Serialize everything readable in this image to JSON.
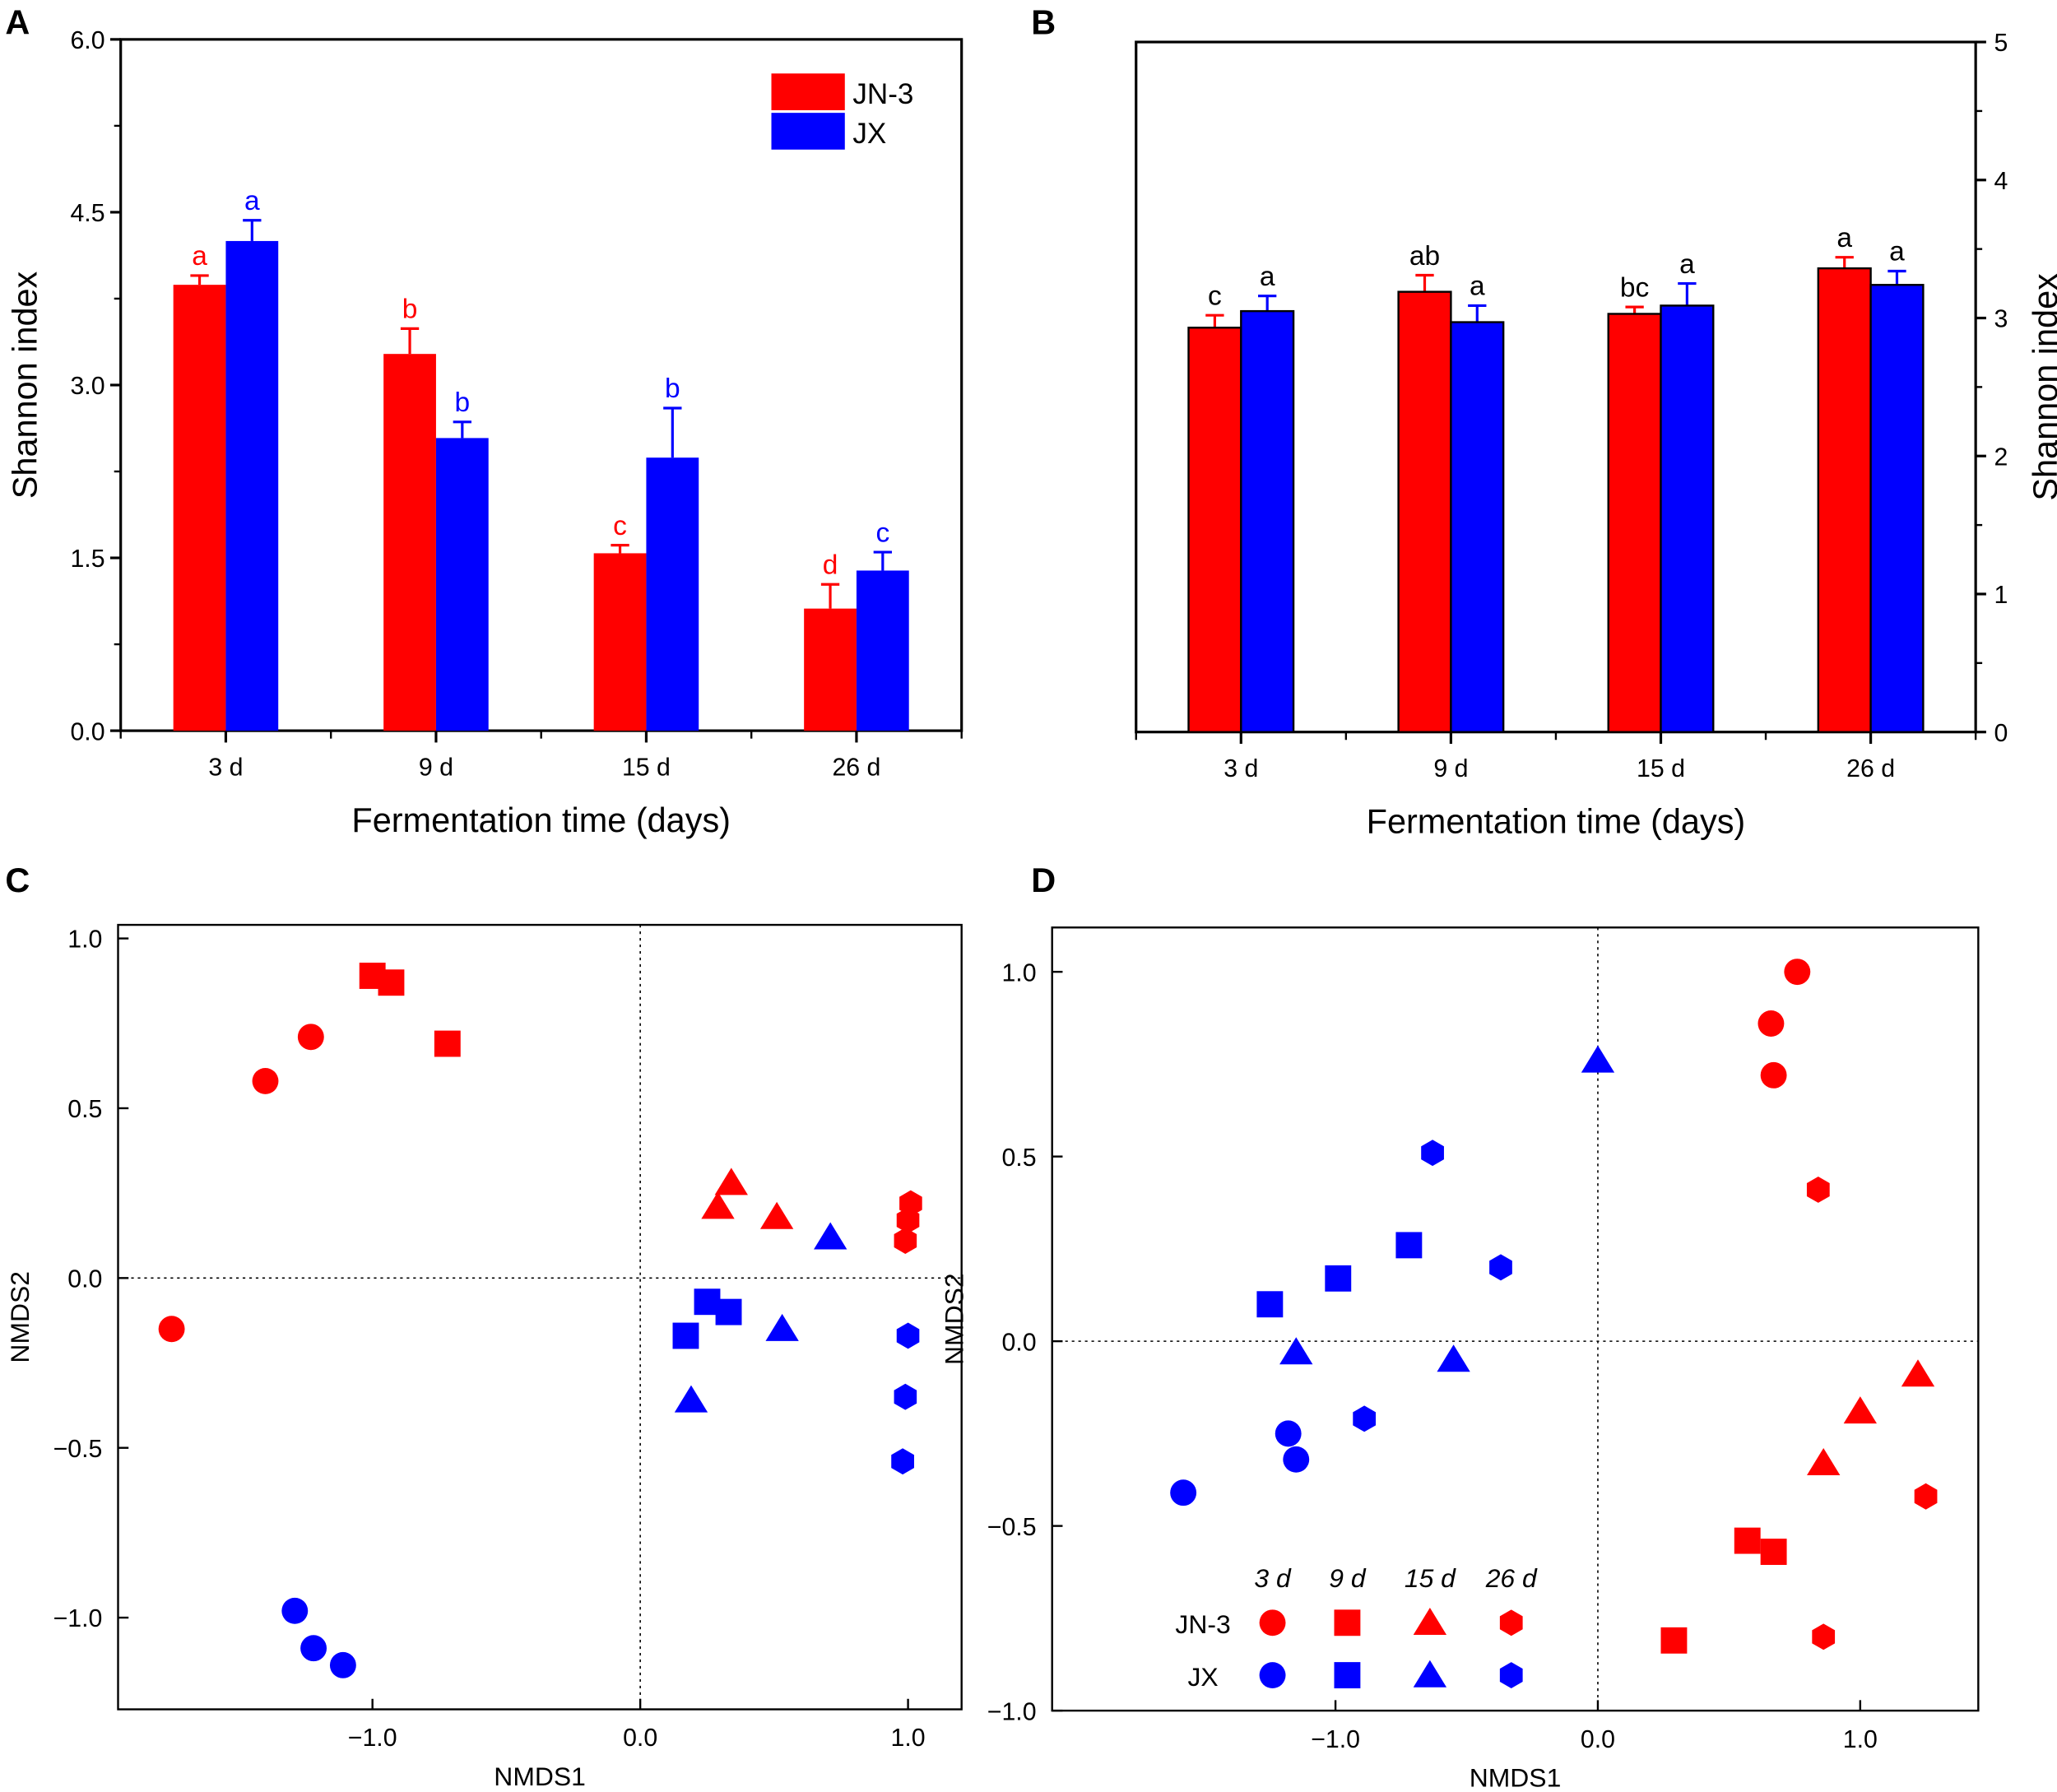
{
  "colors": {
    "jn3": "#ff0000",
    "jx": "#0000ff",
    "axis": "#000000"
  },
  "legend_series": [
    "JN-3",
    "JX"
  ],
  "chart_data": [
    {
      "panel": "A",
      "type": "bar",
      "categories": [
        "3 d",
        "9 d",
        "15 d",
        "26 d"
      ],
      "xlabel": "Fermentation time (days)",
      "ylabel": "Shannon index",
      "ylim": [
        0,
        6
      ],
      "yticks": [
        "0.0",
        "1.5",
        "3.0",
        "4.5",
        "6.0"
      ],
      "y_axis_side": "left",
      "legend_placement": "top-right",
      "letters_colored": true,
      "bar_outline": false,
      "series": [
        {
          "name": "JN-3",
          "values": [
            3.87,
            3.27,
            1.54,
            1.06
          ],
          "errors": [
            0.08,
            0.22,
            0.07,
            0.21
          ],
          "letters": [
            "a",
            "b",
            "c",
            "d"
          ]
        },
        {
          "name": "JX",
          "values": [
            4.25,
            2.54,
            2.37,
            1.39
          ],
          "errors": [
            0.18,
            0.14,
            0.43,
            0.16
          ],
          "letters": [
            "a",
            "b",
            "b",
            "c"
          ]
        }
      ]
    },
    {
      "panel": "B",
      "type": "bar",
      "categories": [
        "3 d",
        "9 d",
        "15 d",
        "26 d"
      ],
      "xlabel": "Fermentation time (days)",
      "ylabel": "Shannon index",
      "ylim": [
        0,
        5
      ],
      "yticks": [
        "0",
        "1",
        "2",
        "3",
        "4",
        "5"
      ],
      "y_axis_side": "right",
      "letters_colored": false,
      "bar_outline": true,
      "series": [
        {
          "name": "JN-3",
          "values": [
            2.93,
            3.19,
            3.03,
            3.36
          ],
          "errors": [
            0.09,
            0.12,
            0.05,
            0.08
          ],
          "letters": [
            "c",
            "ab",
            "bc",
            "a"
          ]
        },
        {
          "name": "JX",
          "values": [
            3.05,
            2.97,
            3.09,
            3.24
          ],
          "errors": [
            0.11,
            0.12,
            0.16,
            0.1
          ],
          "letters": [
            "a",
            "a",
            "a",
            "a"
          ]
        }
      ]
    },
    {
      "panel": "C",
      "type": "scatter",
      "xlabel": "NMDS1",
      "ylabel": "NMDS2",
      "xlim": [
        -1.95,
        1.2
      ],
      "ylim": [
        -1.27,
        1.04
      ],
      "xticks": [
        "−1.0",
        "0.0",
        "1.0"
      ],
      "xtick_values": [
        -1,
        0,
        1
      ],
      "yticks": [
        "−1.0",
        "−0.5",
        "0.0",
        "0.5",
        "1.0"
      ],
      "ytick_values": [
        -1,
        -0.5,
        0,
        0.5,
        1
      ],
      "zero_lines": "dotted",
      "points": [
        {
          "group": "JN-3",
          "day": "3 d",
          "shape": "circle",
          "pts": [
            [
              -1.23,
              0.71
            ],
            [
              -1.4,
              0.58
            ],
            [
              -1.75,
              -0.15
            ]
          ]
        },
        {
          "group": "JN-3",
          "day": "9 d",
          "shape": "square",
          "pts": [
            [
              -1.0,
              0.89
            ],
            [
              -0.93,
              0.87
            ],
            [
              -0.72,
              0.69
            ]
          ]
        },
        {
          "group": "JN-3",
          "day": "15 d",
          "shape": "triangle",
          "pts": [
            [
              0.34,
              0.28
            ],
            [
              0.29,
              0.21
            ],
            [
              0.51,
              0.18
            ]
          ]
        },
        {
          "group": "JN-3",
          "day": "26 d",
          "shape": "hexagon",
          "pts": [
            [
              1.01,
              0.22
            ],
            [
              1.0,
              0.17
            ],
            [
              0.99,
              0.11
            ]
          ]
        },
        {
          "group": "JX",
          "day": "3 d",
          "shape": "circle",
          "pts": [
            [
              -1.29,
              -0.98
            ],
            [
              -1.22,
              -1.09
            ],
            [
              -1.11,
              -1.14
            ]
          ]
        },
        {
          "group": "JX",
          "day": "9 d",
          "shape": "square",
          "pts": [
            [
              0.17,
              -0.17
            ],
            [
              0.25,
              -0.07
            ],
            [
              0.33,
              -0.1
            ]
          ]
        },
        {
          "group": "JX",
          "day": "15 d",
          "shape": "triangle",
          "pts": [
            [
              0.71,
              0.12
            ],
            [
              0.53,
              -0.15
            ],
            [
              0.19,
              -0.36
            ]
          ]
        },
        {
          "group": "JX",
          "day": "26 d",
          "shape": "hexagon",
          "pts": [
            [
              1.0,
              -0.17
            ],
            [
              0.99,
              -0.35
            ],
            [
              0.98,
              -0.54
            ]
          ]
        }
      ]
    },
    {
      "panel": "D",
      "type": "scatter",
      "xlabel": "NMDS1",
      "ylabel": "NMDS2",
      "xlim": [
        -2.08,
        1.45
      ],
      "ylim": [
        -1.0,
        1.12
      ],
      "xticks": [
        "−1.0",
        "0.0",
        "1.0"
      ],
      "xtick_values": [
        -1,
        0,
        1
      ],
      "yticks": [
        "−1.0",
        "−0.5",
        "0.0",
        "0.5",
        "1.0"
      ],
      "ytick_values": [
        -1,
        -0.5,
        0,
        0.5,
        1
      ],
      "zero_lines": "dotted",
      "legend_placement": "bottom-left",
      "legend_days": [
        "3 d",
        "9 d",
        "15 d",
        "26 d"
      ],
      "legend_groups": [
        "JN-3",
        "JX"
      ],
      "points": [
        {
          "group": "JN-3",
          "day": "3 d",
          "shape": "circle",
          "pts": [
            [
              0.76,
              1.0
            ],
            [
              0.66,
              0.86
            ],
            [
              0.67,
              0.72
            ]
          ]
        },
        {
          "group": "JN-3",
          "day": "9 d",
          "shape": "square",
          "pts": [
            [
              0.57,
              -0.54
            ],
            [
              0.67,
              -0.57
            ],
            [
              0.29,
              -0.81
            ]
          ]
        },
        {
          "group": "JN-3",
          "day": "15 d",
          "shape": "triangle",
          "pts": [
            [
              1.22,
              -0.09
            ],
            [
              1.0,
              -0.19
            ],
            [
              0.86,
              -0.33
            ]
          ]
        },
        {
          "group": "JN-3",
          "day": "26 d",
          "shape": "hexagon",
          "pts": [
            [
              0.84,
              0.41
            ],
            [
              1.25,
              -0.42
            ],
            [
              0.86,
              -0.8
            ]
          ]
        },
        {
          "group": "JX",
          "day": "3 d",
          "shape": "circle",
          "pts": [
            [
              -1.18,
              -0.25
            ],
            [
              -1.15,
              -0.32
            ],
            [
              -1.58,
              -0.41
            ]
          ]
        },
        {
          "group": "JX",
          "day": "9 d",
          "shape": "square",
          "pts": [
            [
              -1.25,
              0.1
            ],
            [
              -0.99,
              0.17
            ],
            [
              -0.72,
              0.26
            ]
          ]
        },
        {
          "group": "JX",
          "day": "15 d",
          "shape": "triangle",
          "pts": [
            [
              0.0,
              0.76
            ],
            [
              -1.15,
              -0.03
            ],
            [
              -0.55,
              -0.05
            ]
          ]
        },
        {
          "group": "JX",
          "day": "26 d",
          "shape": "hexagon",
          "pts": [
            [
              -0.63,
              0.51
            ],
            [
              -0.37,
              0.2
            ],
            [
              -0.89,
              -0.21
            ]
          ]
        }
      ]
    }
  ]
}
